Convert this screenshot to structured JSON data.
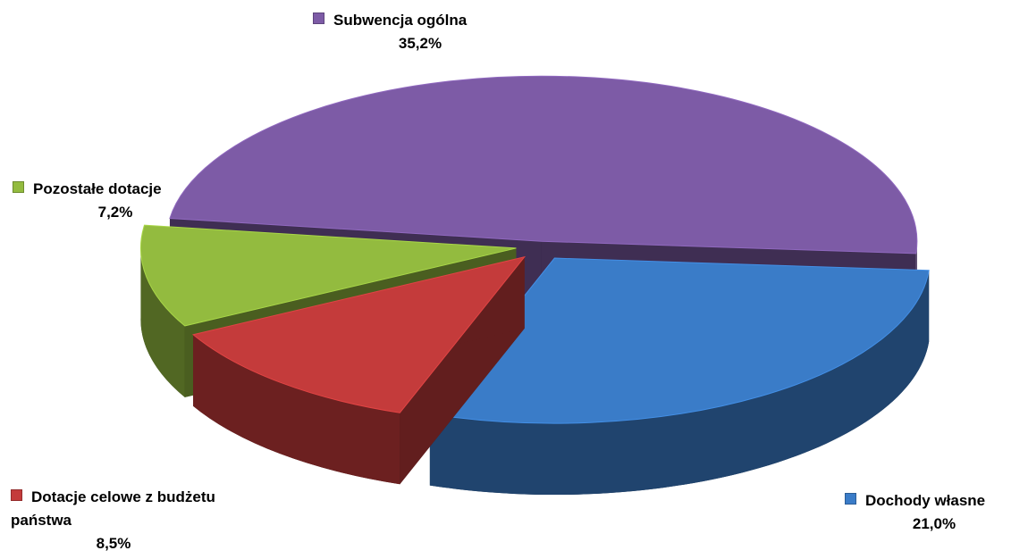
{
  "chart_data": {
    "type": "pie",
    "categories": [
      "Subwencja ogólna",
      "Dochody własne",
      "Dotacje celowe z budżetu państwa",
      "Pozostałe dotacje"
    ],
    "values": [
      35.2,
      21.0,
      8.5,
      7.2
    ],
    "value_labels": [
      "35,2%",
      "21,0%",
      "8,5%",
      "7,2%"
    ],
    "colors": [
      "#7d5ba6",
      "#3a7cc8",
      "#c43b3b",
      "#93bb3f"
    ]
  }
}
